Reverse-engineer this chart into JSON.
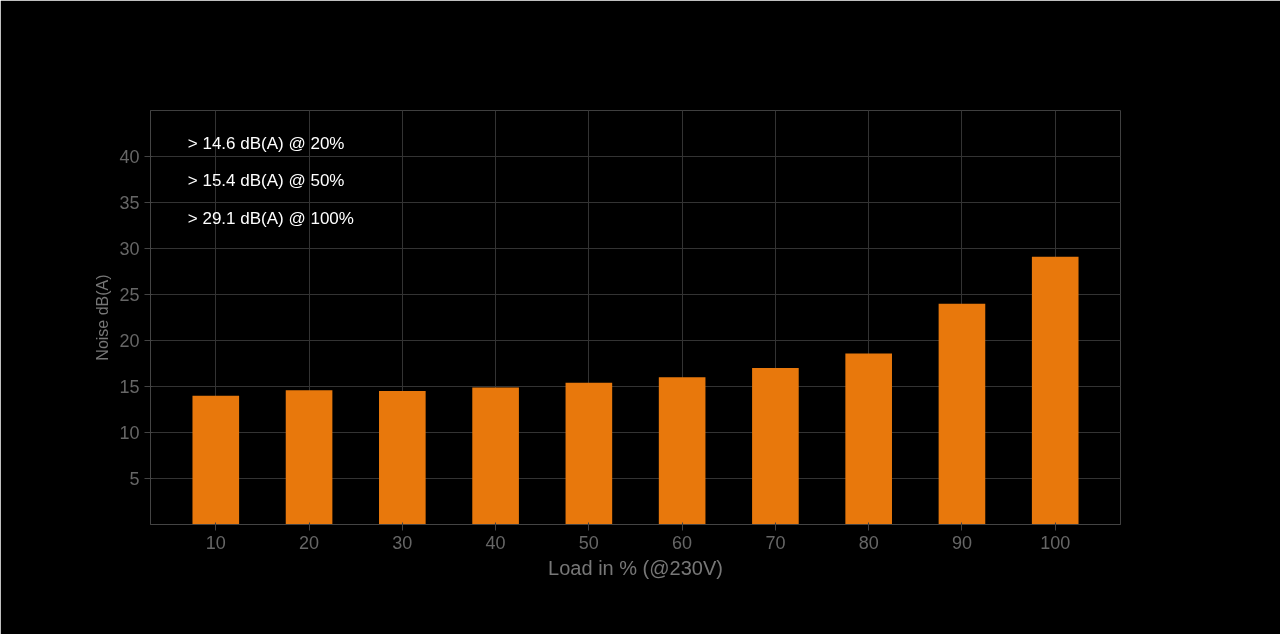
{
  "chart_data": {
    "type": "bar",
    "ylabel": "Noise dB(A)",
    "xlabel": "Load in % (@230V)",
    "categories": [
      "10",
      "20",
      "30",
      "40",
      "50",
      "60",
      "70",
      "80",
      "90",
      "100"
    ],
    "values": [
      14.0,
      14.6,
      14.5,
      14.9,
      15.4,
      16.0,
      17.0,
      18.6,
      24.0,
      29.1
    ],
    "color": "#e8780c",
    "ylim": [
      0,
      45
    ],
    "yticks": [
      5,
      10,
      15,
      20,
      25,
      30,
      35,
      40
    ],
    "grid": true,
    "annotations": [
      "> 14.6  dB(A) @ 20%",
      "> 15.4  dB(A) @ 50%",
      "> 29.1  dB(A) @ 100%"
    ]
  }
}
